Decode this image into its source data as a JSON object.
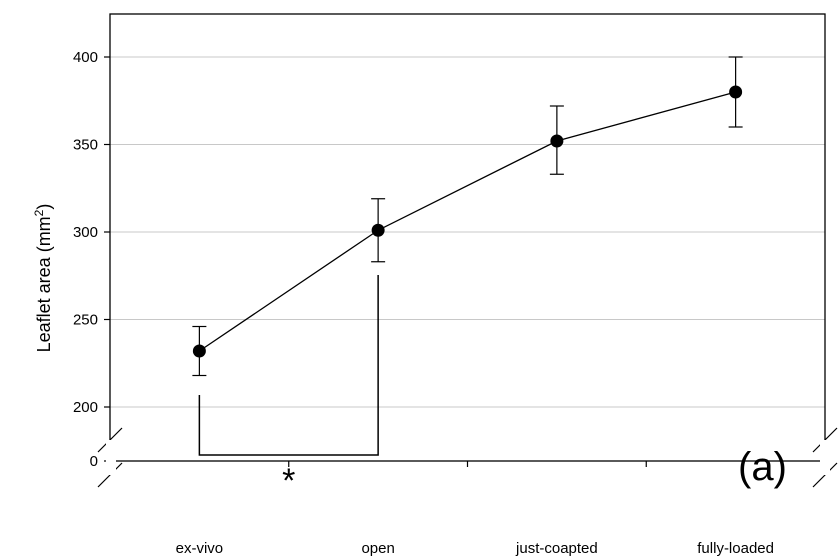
{
  "chart_data": {
    "type": "line",
    "categories": [
      "ex-vivo",
      "open",
      "just-coapted",
      "fully-loaded"
    ],
    "series": [
      {
        "values": [
          232,
          301,
          352,
          380
        ],
        "error_low": [
          218,
          283,
          333,
          360
        ],
        "error_high": [
          246,
          319,
          372,
          400
        ]
      }
    ],
    "ylabel_main": "Leaflet area (mm",
    "ylabel_sup": "2",
    "ylabel_end": ")",
    "y_ticks": [
      0,
      200,
      250,
      300,
      350,
      400
    ],
    "y_tick_labels": [
      "0",
      "200",
      "250",
      "300",
      "350",
      "400"
    ],
    "axis_break": true,
    "ylim": [
      0,
      425
    ],
    "grid": true,
    "panel_label": "(a)",
    "significance": {
      "marker": "*",
      "between": [
        "ex-vivo",
        "open"
      ]
    }
  }
}
